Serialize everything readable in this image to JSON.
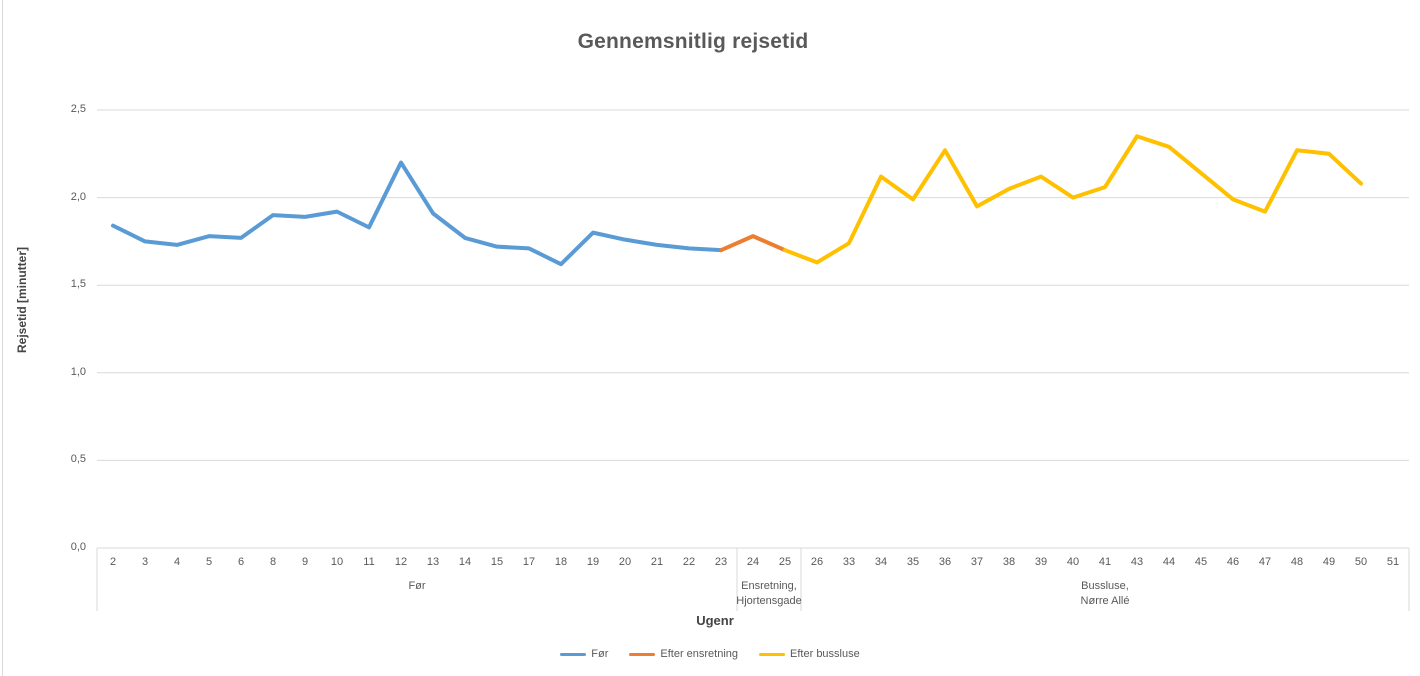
{
  "window": {
    "background_color": "#ffffff",
    "left_border_color": "#d9d9d9"
  },
  "style": {
    "gridline_color": "#d9d9d9",
    "axis_line_color": "#d9d9d9",
    "text_color": "#595959"
  },
  "chart_data": {
    "type": "line",
    "title": "Gennemsnitlig rejsetid",
    "xlabel": "Ugenr",
    "ylabel": "Rejsetid [minutter]",
    "ylim": [
      0,
      2.5
    ],
    "y_tick_step": 0.5,
    "grid": "horizontal",
    "legend_position": "bottom",
    "y_ticks": [
      {
        "label": "0,0",
        "value": 0
      },
      {
        "label": "0,5",
        "value": 0.5
      },
      {
        "label": "1,0",
        "value": 1
      },
      {
        "label": "1,5",
        "value": 1.5
      },
      {
        "label": "2,0",
        "value": 2
      },
      {
        "label": "2,5",
        "value": 2.5
      }
    ],
    "categories": [
      "2",
      "3",
      "4",
      "5",
      "6",
      "8",
      "9",
      "10",
      "11",
      "12",
      "13",
      "14",
      "15",
      "17",
      "18",
      "19",
      "20",
      "21",
      "22",
      "23",
      "24",
      "25",
      "26",
      "33",
      "34",
      "35",
      "36",
      "37",
      "38",
      "39",
      "40",
      "41",
      "43",
      "44",
      "45",
      "46",
      "47",
      "48",
      "49",
      "50",
      "51"
    ],
    "category_groups": [
      {
        "label": "Før",
        "start": "2",
        "end": "23"
      },
      {
        "label": "Ensretning,\nHjortensgade",
        "start": "24",
        "end": "25"
      },
      {
        "label": "Bussluse,\nNørre Allé",
        "start": "26",
        "end": "51"
      }
    ],
    "series": [
      {
        "name": "Før",
        "color": "#5B9BD5",
        "points": [
          [
            "2",
            1.84
          ],
          [
            "3",
            1.75
          ],
          [
            "4",
            1.73
          ],
          [
            "5",
            1.78
          ],
          [
            "6",
            1.77
          ],
          [
            "8",
            1.9
          ],
          [
            "9",
            1.89
          ],
          [
            "10",
            1.92
          ],
          [
            "11",
            1.83
          ],
          [
            "12",
            2.2
          ],
          [
            "13",
            1.91
          ],
          [
            "14",
            1.77
          ],
          [
            "15",
            1.72
          ],
          [
            "17",
            1.71
          ],
          [
            "18",
            1.62
          ],
          [
            "19",
            1.8
          ],
          [
            "20",
            1.76
          ],
          [
            "21",
            1.73
          ],
          [
            "22",
            1.71
          ],
          [
            "23",
            1.7
          ]
        ]
      },
      {
        "name": "Efter ensretning",
        "color": "#ED7D31",
        "points": [
          [
            "23",
            1.7
          ],
          [
            "24",
            1.78
          ],
          [
            "25",
            1.7
          ]
        ]
      },
      {
        "name": "Efter bussluse",
        "color": "#FFC000",
        "points": [
          [
            "25",
            1.7
          ],
          [
            "26",
            1.63
          ],
          [
            "33",
            1.74
          ],
          [
            "34",
            2.12
          ],
          [
            "35",
            1.99
          ],
          [
            "36",
            2.27
          ],
          [
            "37",
            1.95
          ],
          [
            "38",
            2.05
          ],
          [
            "39",
            2.12
          ],
          [
            "40",
            2.0
          ],
          [
            "41",
            2.06
          ],
          [
            "43",
            2.35
          ],
          [
            "44",
            2.29
          ],
          [
            "45",
            2.14
          ],
          [
            "46",
            1.99
          ],
          [
            "47",
            1.92
          ],
          [
            "48",
            2.27
          ],
          [
            "49",
            2.25
          ],
          [
            "50",
            2.08
          ]
        ]
      }
    ]
  }
}
